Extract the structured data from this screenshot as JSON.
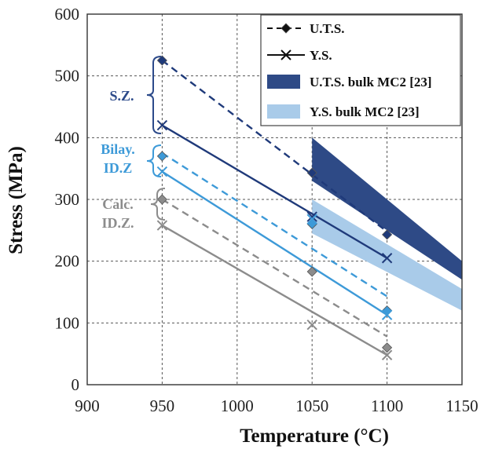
{
  "chart_data": {
    "type": "line",
    "xlabel": "Temperature (°C)",
    "ylabel": "Stress (MPa)",
    "xlim": [
      900,
      1150
    ],
    "ylim": [
      0,
      600
    ],
    "xticks": [
      900,
      950,
      1000,
      1050,
      1100,
      1150
    ],
    "yticks": [
      0,
      100,
      200,
      300,
      400,
      500,
      600
    ],
    "grid": true,
    "legend_position": "top-right",
    "legend": [
      {
        "label": "U.T.S.",
        "style": "dashed-diamond"
      },
      {
        "label": "Y.S.",
        "style": "solid-cross"
      },
      {
        "label": "U.T.S. bulk MC2 [23]",
        "style": "band",
        "color": "#2e4a86"
      },
      {
        "label": "Y.S. bulk MC2 [23]",
        "style": "band",
        "color": "#a9cbe9"
      }
    ],
    "bands": [
      {
        "name": "U.T.S. bulk MC2 [23]",
        "color": "#2e4a86",
        "x": [
          1050,
          1150
        ],
        "upper": [
          400,
          200
        ],
        "lower": [
          330,
          170
        ]
      },
      {
        "name": "Y.S. bulk MC2 [23]",
        "color": "#a9cbe9",
        "x": [
          1050,
          1150
        ],
        "upper": [
          300,
          155
        ],
        "lower": [
          245,
          120
        ]
      }
    ],
    "series": [
      {
        "group": "S.Z.",
        "measure": "U.T.S.",
        "color": "#1f3a7a",
        "marker": "diamond",
        "points": [
          [
            950,
            525
          ],
          [
            1050,
            343
          ],
          [
            1100,
            243
          ]
        ],
        "fit": [
          [
            950,
            525
          ],
          [
            1100,
            248
          ]
        ]
      },
      {
        "group": "S.Z.",
        "measure": "Y.S.",
        "color": "#1f3a7a",
        "marker": "cross",
        "points": [
          [
            950,
            420
          ],
          [
            1050,
            272
          ],
          [
            1100,
            205
          ]
        ],
        "fit": [
          [
            950,
            420
          ],
          [
            1100,
            205
          ]
        ]
      },
      {
        "group": "Bilay. ID.Z",
        "measure": "U.T.S.",
        "color": "#3d9ad8",
        "marker": "diamond",
        "points": [
          [
            950,
            370
          ],
          [
            1050,
            260
          ],
          [
            1100,
            120
          ]
        ],
        "fit": [
          [
            950,
            375
          ],
          [
            1100,
            143
          ]
        ]
      },
      {
        "group": "Bilay. ID.Z",
        "measure": "Y.S.",
        "color": "#3d9ad8",
        "marker": "cross",
        "points": [
          [
            950,
            345
          ],
          [
            1050,
            268
          ],
          [
            1100,
            113
          ]
        ],
        "fit": [
          [
            950,
            345
          ],
          [
            1100,
            113
          ]
        ]
      },
      {
        "group": "Calc. ID.Z.",
        "measure": "U.T.S.",
        "color": "#8c8c8c",
        "marker": "diamond",
        "points": [
          [
            950,
            300
          ],
          [
            1050,
            183
          ],
          [
            1100,
            60
          ]
        ],
        "fit": [
          [
            950,
            300
          ],
          [
            1100,
            78
          ]
        ]
      },
      {
        "group": "Calc. ID.Z.",
        "measure": "Y.S.",
        "color": "#8c8c8c",
        "marker": "cross",
        "points": [
          [
            950,
            258
          ],
          [
            1050,
            97
          ],
          [
            1100,
            48
          ]
        ],
        "fit": [
          [
            950,
            258
          ],
          [
            1100,
            48
          ]
        ]
      }
    ],
    "annotations": [
      {
        "text": "S.Z.",
        "color": "#2c4a8a",
        "lines": [
          "S.Z."
        ]
      },
      {
        "text": "Bilay. ID.Z",
        "color": "#3d9ad8",
        "lines": [
          "Bilay.",
          "ID.Z"
        ]
      },
      {
        "text": "Calc. ID.Z.",
        "color": "#8c8c8c",
        "lines": [
          "Calc.",
          "ID.Z."
        ]
      }
    ]
  }
}
